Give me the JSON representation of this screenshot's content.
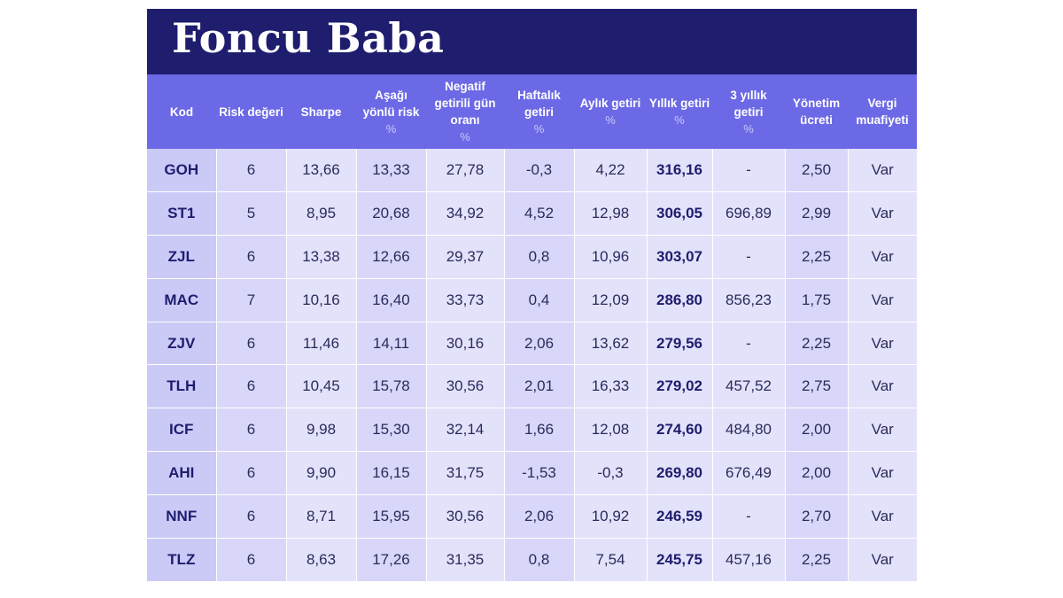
{
  "title": "Foncu Baba",
  "headers": [
    {
      "label": "Kod",
      "unit": ""
    },
    {
      "label": "Risk değeri",
      "unit": ""
    },
    {
      "label": "Sharpe",
      "unit": ""
    },
    {
      "label": "Aşağı yönlü risk",
      "unit": "%"
    },
    {
      "label": "Negatif getirili gün oranı",
      "unit": "%"
    },
    {
      "label": "Haftalık getiri",
      "unit": "%"
    },
    {
      "label": "Aylık getiri",
      "unit": "%"
    },
    {
      "label": "Yıllık getiri",
      "unit": "%"
    },
    {
      "label": "3 yıllık getiri",
      "unit": "%"
    },
    {
      "label": "Yönetim ücreti",
      "unit": ""
    },
    {
      "label": "Vergi muafiyeti",
      "unit": ""
    }
  ],
  "rows": [
    {
      "kod": "GOH",
      "risk": "6",
      "sharpe": "13,66",
      "downside": "13,33",
      "negdays": "27,78",
      "weekly": "-0,3",
      "monthly": "4,22",
      "annual": "316,16",
      "threeyear": "-",
      "fee": "2,50",
      "tax": "Var"
    },
    {
      "kod": "ST1",
      "risk": "5",
      "sharpe": "8,95",
      "downside": "20,68",
      "negdays": "34,92",
      "weekly": "4,52",
      "monthly": "12,98",
      "annual": "306,05",
      "threeyear": "696,89",
      "fee": "2,99",
      "tax": "Var"
    },
    {
      "kod": "ZJL",
      "risk": "6",
      "sharpe": "13,38",
      "downside": "12,66",
      "negdays": "29,37",
      "weekly": "0,8",
      "monthly": "10,96",
      "annual": "303,07",
      "threeyear": "-",
      "fee": "2,25",
      "tax": "Var"
    },
    {
      "kod": "MAC",
      "risk": "7",
      "sharpe": "10,16",
      "downside": "16,40",
      "negdays": "33,73",
      "weekly": "0,4",
      "monthly": "12,09",
      "annual": "286,80",
      "threeyear": "856,23",
      "fee": "1,75",
      "tax": "Var"
    },
    {
      "kod": "ZJV",
      "risk": "6",
      "sharpe": "11,46",
      "downside": "14,11",
      "negdays": "30,16",
      "weekly": "2,06",
      "monthly": "13,62",
      "annual": "279,56",
      "threeyear": "-",
      "fee": "2,25",
      "tax": "Var"
    },
    {
      "kod": "TLH",
      "risk": "6",
      "sharpe": "10,45",
      "downside": "15,78",
      "negdays": "30,56",
      "weekly": "2,01",
      "monthly": "16,33",
      "annual": "279,02",
      "threeyear": "457,52",
      "fee": "2,75",
      "tax": "Var"
    },
    {
      "kod": "ICF",
      "risk": "6",
      "sharpe": "9,98",
      "downside": "15,30",
      "negdays": "32,14",
      "weekly": "1,66",
      "monthly": "12,08",
      "annual": "274,60",
      "threeyear": "484,80",
      "fee": "2,00",
      "tax": "Var"
    },
    {
      "kod": "AHI",
      "risk": "6",
      "sharpe": "9,90",
      "downside": "16,15",
      "negdays": "31,75",
      "weekly": "-1,53",
      "monthly": "-0,3",
      "annual": "269,80",
      "threeyear": "676,49",
      "fee": "2,00",
      "tax": "Var"
    },
    {
      "kod": "NNF",
      "risk": "6",
      "sharpe": "8,71",
      "downside": "15,95",
      "negdays": "30,56",
      "weekly": "2,06",
      "monthly": "10,92",
      "annual": "246,59",
      "threeyear": "-",
      "fee": "2,70",
      "tax": "Var"
    },
    {
      "kod": "TLZ",
      "risk": "6",
      "sharpe": "8,63",
      "downside": "17,26",
      "negdays": "31,35",
      "weekly": "0,8",
      "monthly": "7,54",
      "annual": "245,75",
      "threeyear": "457,16",
      "fee": "2,25",
      "tax": "Var"
    }
  ]
}
